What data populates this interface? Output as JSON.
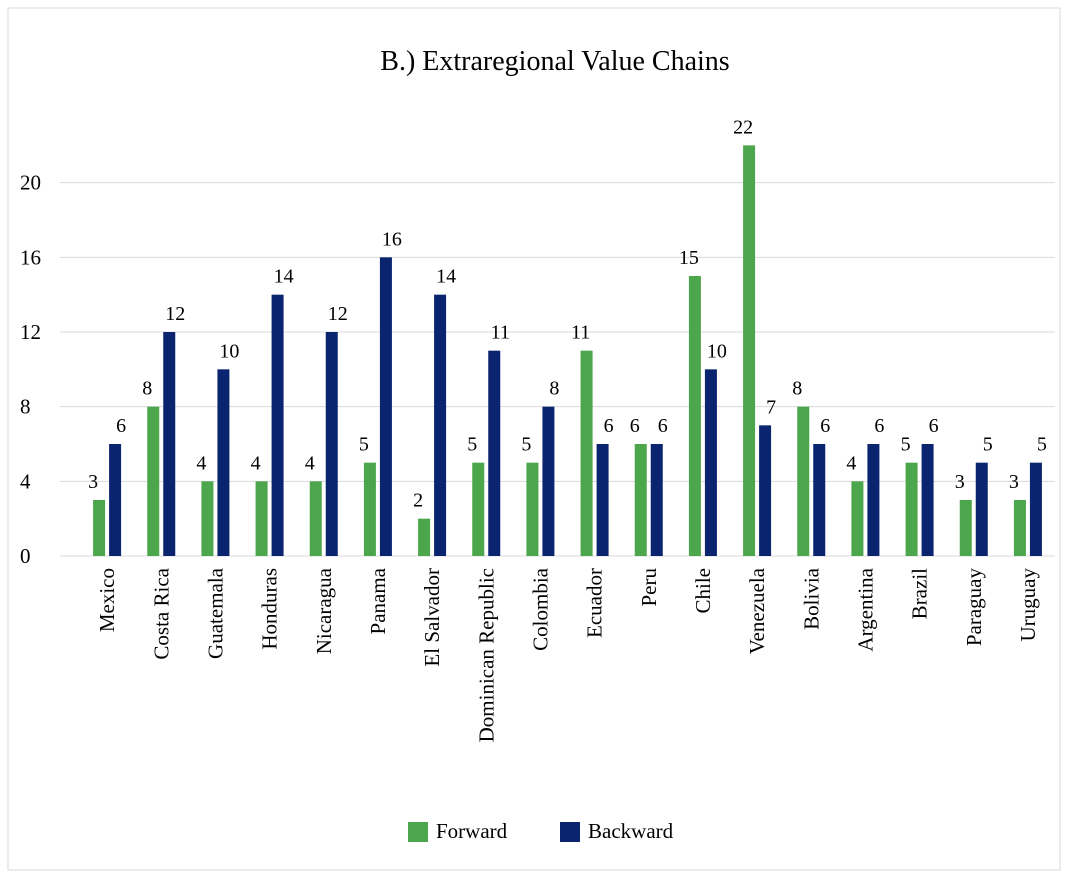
{
  "chart_data": {
    "type": "bar",
    "title": "B.) Extraregional Value Chains",
    "categories": [
      "Mexico",
      "Costa Rica",
      "Guatemala",
      "Honduras",
      "Nicaragua",
      "Panama",
      "El Salvador",
      "Dominican Republic",
      "Colombia",
      "Ecuador",
      "Peru",
      "Chile",
      "Venezuela",
      "Bolivia",
      "Argentina",
      "Brazil",
      "Paraguay",
      "Uruguay"
    ],
    "series": [
      {
        "name": "Forward",
        "color": "#4ca64c",
        "values": [
          3,
          8,
          4,
          4,
          4,
          5,
          2,
          5,
          5,
          11,
          6,
          15,
          22,
          8,
          4,
          5,
          3,
          3
        ]
      },
      {
        "name": "Backward",
        "color": "#0b2470",
        "values": [
          6,
          12,
          10,
          14,
          12,
          16,
          14,
          11,
          8,
          6,
          6,
          10,
          7,
          6,
          6,
          6,
          5,
          5
        ]
      }
    ],
    "ylim": [
      0,
      24
    ],
    "yticks": [
      0,
      4,
      8,
      12,
      16,
      20
    ],
    "grid": true,
    "legend": "bottom"
  }
}
